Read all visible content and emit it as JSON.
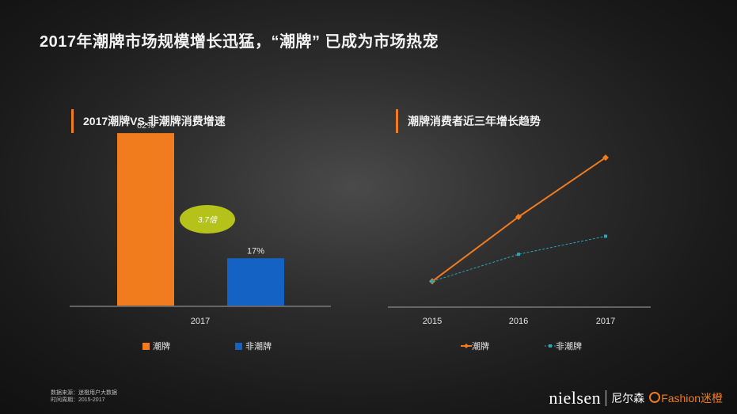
{
  "header": {
    "title": "2017年潮牌市场规模增长迅猛，“潮牌” 已成为市场热宠"
  },
  "charts": {
    "left_title": "2017潮牌VS.非潮牌消费增速",
    "right_title": "潮牌消费者近三年增长趋势"
  },
  "chart_data": [
    {
      "type": "bar",
      "title": "2017潮牌VS.非潮牌消费增速",
      "categories": [
        "2017"
      ],
      "series": [
        {
          "name": "潮牌",
          "values": [
            62
          ],
          "labels": [
            "62%"
          ],
          "color": "#f07c1e"
        },
        {
          "name": "非潮牌",
          "values": [
            17
          ],
          "labels": [
            "17%"
          ],
          "color": "#1463c4"
        }
      ],
      "annotations": [
        "3.7倍"
      ],
      "ylim": [
        0,
        70
      ],
      "grid": false,
      "legend": "bottom"
    },
    {
      "type": "line",
      "title": "潮牌消费者近三年增长趋势",
      "x": [
        "2015",
        "2016",
        "2017"
      ],
      "series": [
        {
          "name": "潮牌",
          "values": [
            1.0,
            3.5,
            5.8
          ],
          "color": "#f07c1e"
        },
        {
          "name": "非潮牌",
          "values": [
            1.0,
            2.05,
            2.75
          ],
          "color": "#2ba5b8"
        }
      ],
      "ylim": [
        0,
        7
      ],
      "grid": false,
      "legend": "bottom"
    }
  ],
  "footer": {
    "source": "数据来源：迷橙用户大数据",
    "period": "时间周期：2015-2017",
    "brand_en": "nielsen",
    "brand_cn": "尼尔森",
    "partner": "Fashion迷橙"
  }
}
